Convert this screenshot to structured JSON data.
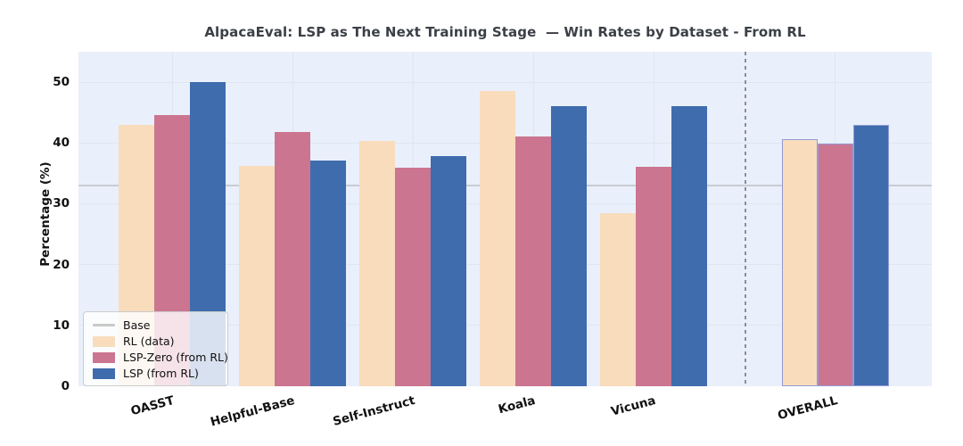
{
  "chart_data": {
    "type": "bar",
    "title": "AlpacaEval: LSP as The Next Training Stage  — Win Rates by Dataset - From RL",
    "xlabel": "",
    "ylabel": "Percentage (%)",
    "ylim": [
      0,
      55
    ],
    "yticks": [
      0,
      10,
      20,
      30,
      40,
      50
    ],
    "grid": true,
    "categories": [
      "OASST",
      "Helpful-Base",
      "Self-Instruct",
      "Koala",
      "Vicuna",
      "OVERALL"
    ],
    "series": [
      {
        "name": "RL (data)",
        "color": "#f8dcbc",
        "values": [
          43.0,
          36.2,
          40.3,
          48.5,
          28.5,
          40.7
        ]
      },
      {
        "name": "LSP-Zero (from RL)",
        "color": "#cb7590",
        "values": [
          44.6,
          41.8,
          35.9,
          41.0,
          36.1,
          39.9
        ]
      },
      {
        "name": "LSP (from RL)",
        "color": "#3f6cad",
        "values": [
          50.0,
          37.1,
          37.9,
          46.0,
          46.1,
          43.0
        ]
      }
    ],
    "baseline": {
      "label": "Base",
      "value": 33.0,
      "color": "#c9ccd3"
    },
    "separator": {
      "after_category": "Vicuna",
      "style": "dashed",
      "color": "#8c8f94"
    },
    "overall_highlight": {
      "category": "OVERALL",
      "edge_color": "#949bd6"
    },
    "legend": {
      "position": "lower left",
      "entries": [
        "Base",
        "RL (data)",
        "LSP-Zero (from RL)",
        "LSP (from RL)"
      ]
    },
    "plot_background": "#e9f0fb"
  }
}
